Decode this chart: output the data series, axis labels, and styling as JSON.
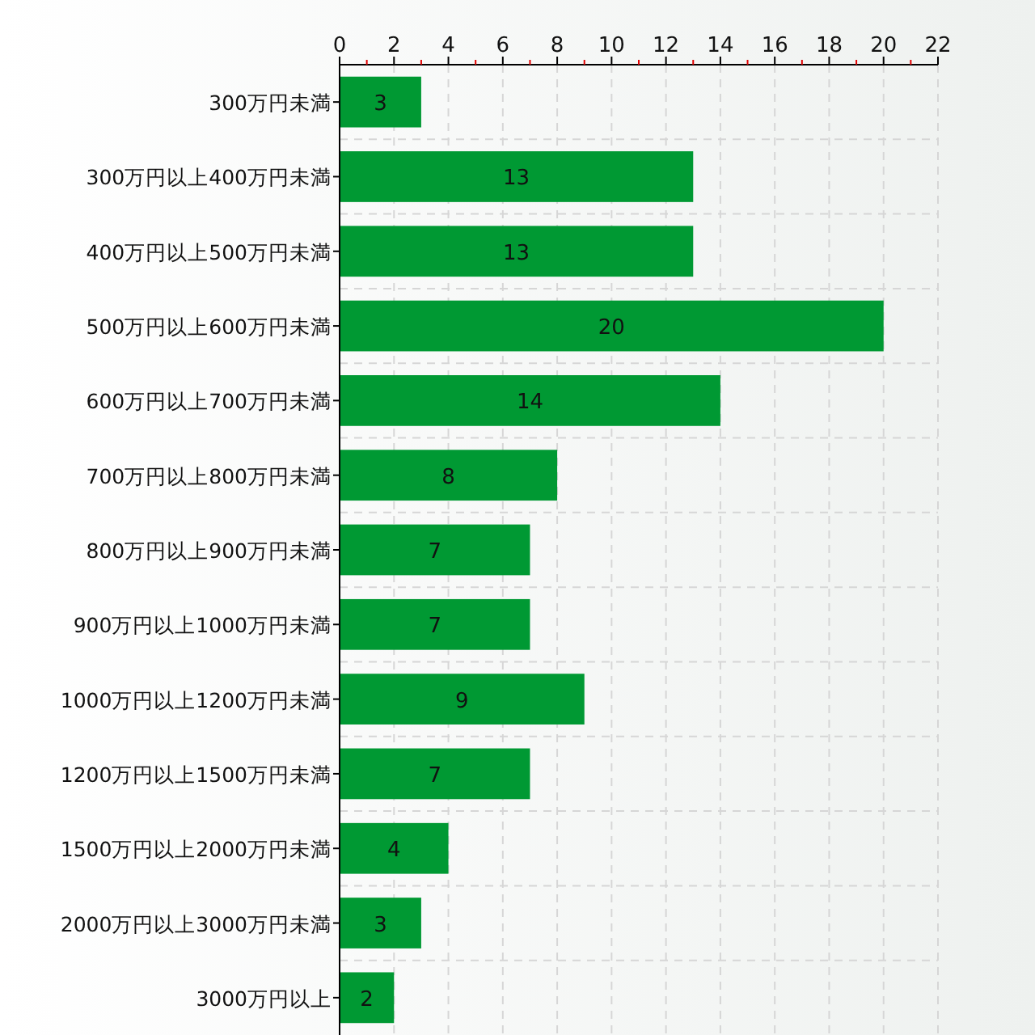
{
  "chart_data": {
    "type": "bar",
    "orientation": "horizontal",
    "categories": [
      "300万円未満",
      "300万円以上400万円未満",
      "400万円以上500万円未満",
      "500万円以上600万円未満",
      "600万円以上700万円未満",
      "700万円以上800万円未満",
      "800万円以上900万円未満",
      "900万円以上1000万円未満",
      "1000万円以上1200万円未満",
      "1200万円以上1500万円未満",
      "1500万円以上2000万円未満",
      "2000万円以上3000万円未満",
      "3000万円以上"
    ],
    "values": [
      3,
      13,
      13,
      20,
      14,
      8,
      7,
      7,
      9,
      7,
      4,
      3,
      2
    ],
    "color": "#009933",
    "xlim": [
      0,
      22
    ],
    "xticks": [
      0,
      {
        "value": 1,
        "label": null
      },
      2,
      {
        "value": 3,
        "label": null
      },
      4,
      {
        "value": 5,
        "label": null
      },
      6,
      {
        "value": 7,
        "label": null
      },
      8,
      {
        "value": 9,
        "label": null
      },
      10,
      {
        "value": 11,
        "label": null
      },
      12,
      {
        "value": 13,
        "label": null
      },
      14,
      {
        "value": 15,
        "label": null
      },
      16,
      {
        "value": 17,
        "label": null
      },
      18,
      {
        "value": 19,
        "label": null
      },
      20,
      {
        "value": 21,
        "label": null
      },
      22
    ],
    "grid": true,
    "data_labels": true
  }
}
